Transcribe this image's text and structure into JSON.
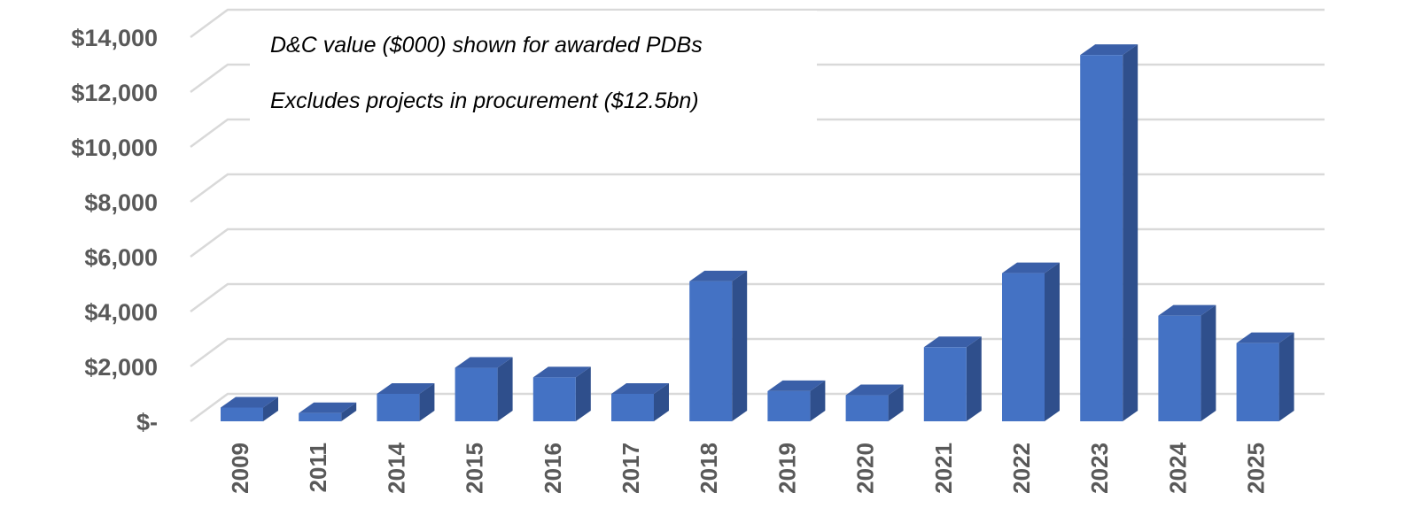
{
  "chart_data": {
    "type": "bar",
    "title": "",
    "xlabel": "",
    "ylabel": "",
    "categories": [
      "2009",
      "2011",
      "2014",
      "2015",
      "2016",
      "2017",
      "2018",
      "2019",
      "2020",
      "2021",
      "2022",
      "2023",
      "2024",
      "2025"
    ],
    "values": [
      500,
      300,
      1000,
      1950,
      1600,
      1000,
      5100,
      1100,
      950,
      2700,
      5400,
      13350,
      3850,
      2850
    ],
    "ylim": [
      0,
      14000
    ],
    "y_ticks": [
      0,
      2000,
      4000,
      6000,
      8000,
      10000,
      12000,
      14000
    ],
    "y_tick_labels": [
      "$-",
      "$2,000",
      "$4,000",
      "$6,000",
      "$8,000",
      "$10,000",
      "$12,000",
      "$14,000"
    ],
    "grid": true,
    "style": "3d-column",
    "annotations": [
      "D&C value ($000) shown for awarded PDBs",
      "Excludes projects in procurement ($12.5bn)"
    ],
    "colors": {
      "front": "#4472C4",
      "side": "#2F4F8C",
      "top": "#3A5FA8",
      "grid": "#D9D9D9",
      "axis_text": "#595959"
    }
  }
}
